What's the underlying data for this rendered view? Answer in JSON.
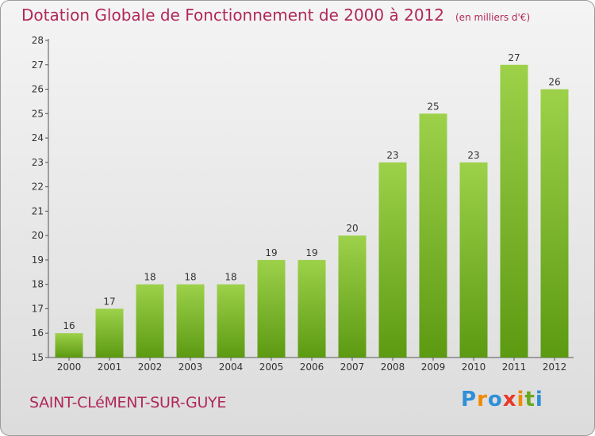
{
  "title": "Dotation Globale de Fonctionnement de 2000 à 2012",
  "unit_note": "(en milliers d'€)",
  "commune": "SAINT-CLéMENT-SUR-GUYE",
  "logo": {
    "letters": [
      "P",
      "r",
      "o",
      "x",
      "i",
      "t",
      "i"
    ],
    "colors": [
      "#2f8fd8",
      "#f08a00",
      "#2f8fd8",
      "#e8382a",
      "#f08a00",
      "#6aa81e",
      "#2f8fd8"
    ]
  },
  "colors": {
    "title": "#b0285a",
    "bar_top": "#9dd14a",
    "bar_bottom": "#5c9a12"
  },
  "chart_data": {
    "type": "bar",
    "categories": [
      "2000",
      "2001",
      "2002",
      "2003",
      "2004",
      "2005",
      "2006",
      "2007",
      "2008",
      "2009",
      "2010",
      "2011",
      "2012"
    ],
    "values": [
      16,
      17,
      18,
      18,
      18,
      19,
      19,
      20,
      23,
      25,
      23,
      27,
      26
    ],
    "ylim": [
      15,
      28
    ],
    "yticks": [
      15,
      16,
      17,
      18,
      19,
      20,
      21,
      22,
      23,
      24,
      25,
      26,
      27,
      28
    ],
    "grid": false
  }
}
